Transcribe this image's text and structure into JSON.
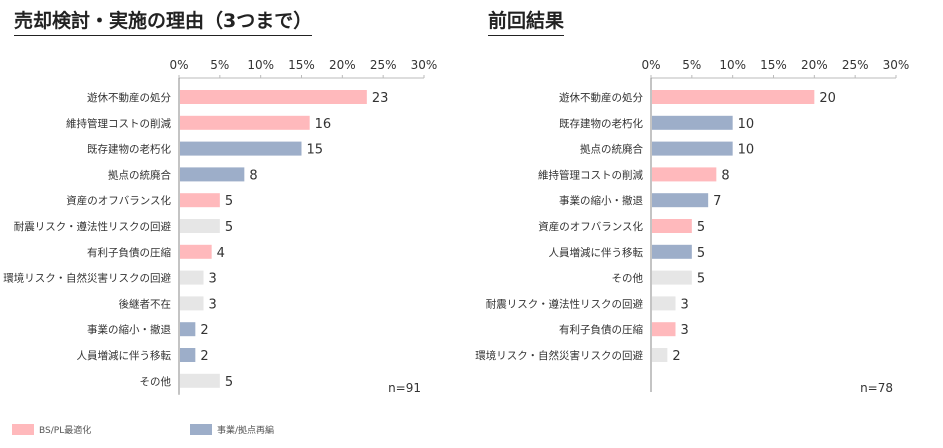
{
  "charts": {
    "left": {
      "title": "売却検討・実施の理由（3つまで）",
      "note": "n=91"
    },
    "right": {
      "title": "前回結果",
      "note": "n=78"
    }
  },
  "legend": [
    {
      "label": "BS/PL最適化",
      "color": "#ffb9bc"
    },
    {
      "label": "事業/拠点再編",
      "color": "#9daec9"
    }
  ],
  "colors": {
    "bs_pl": "#ffb9bc",
    "business": "#9daec9",
    "other": "#e6e6e6"
  },
  "chart_data": [
    {
      "type": "bar",
      "orientation": "horizontal",
      "title": "売却検討・実施の理由（3つまで）",
      "xlim": [
        0,
        30
      ],
      "x_ticks": [
        "0%",
        "5%",
        "10%",
        "15%",
        "20%",
        "25%",
        "30%"
      ],
      "n": 91,
      "categories": [
        "遊休不動産の処分",
        "維持管理コストの削減",
        "既存建物の老朽化",
        "拠点の統廃合",
        "資産のオフバランス化",
        "耐震リスク・遵法性リスクの回避",
        "有利子負債の圧縮",
        "環境リスク・自然災害リスクの回避",
        "後継者不在",
        "事業の縮小・撤退",
        "人員増減に伴う移転",
        "その他"
      ],
      "values": [
        23,
        16,
        15,
        8,
        5,
        5,
        4,
        3,
        3,
        2,
        2,
        5
      ],
      "groups": [
        "bs_pl",
        "bs_pl",
        "business",
        "business",
        "bs_pl",
        "other",
        "bs_pl",
        "other",
        "other",
        "business",
        "business",
        "other"
      ]
    },
    {
      "type": "bar",
      "orientation": "horizontal",
      "title": "前回結果",
      "xlim": [
        0,
        30
      ],
      "x_ticks": [
        "0%",
        "5%",
        "10%",
        "15%",
        "20%",
        "25%",
        "30%"
      ],
      "n": 78,
      "categories": [
        "遊休不動産の処分",
        "既存建物の老朽化",
        "拠点の統廃合",
        "維持管理コストの削減",
        "事業の縮小・撤退",
        "資産のオフバランス化",
        "人員増減に伴う移転",
        "その他",
        "耐震リスク・遵法性リスクの回避",
        "有利子負債の圧縮",
        "環境リスク・自然災害リスクの回避"
      ],
      "values": [
        20,
        10,
        10,
        8,
        7,
        5,
        5,
        5,
        3,
        3,
        2
      ],
      "groups": [
        "bs_pl",
        "business",
        "business",
        "bs_pl",
        "business",
        "bs_pl",
        "business",
        "other",
        "other",
        "bs_pl",
        "other"
      ]
    }
  ]
}
